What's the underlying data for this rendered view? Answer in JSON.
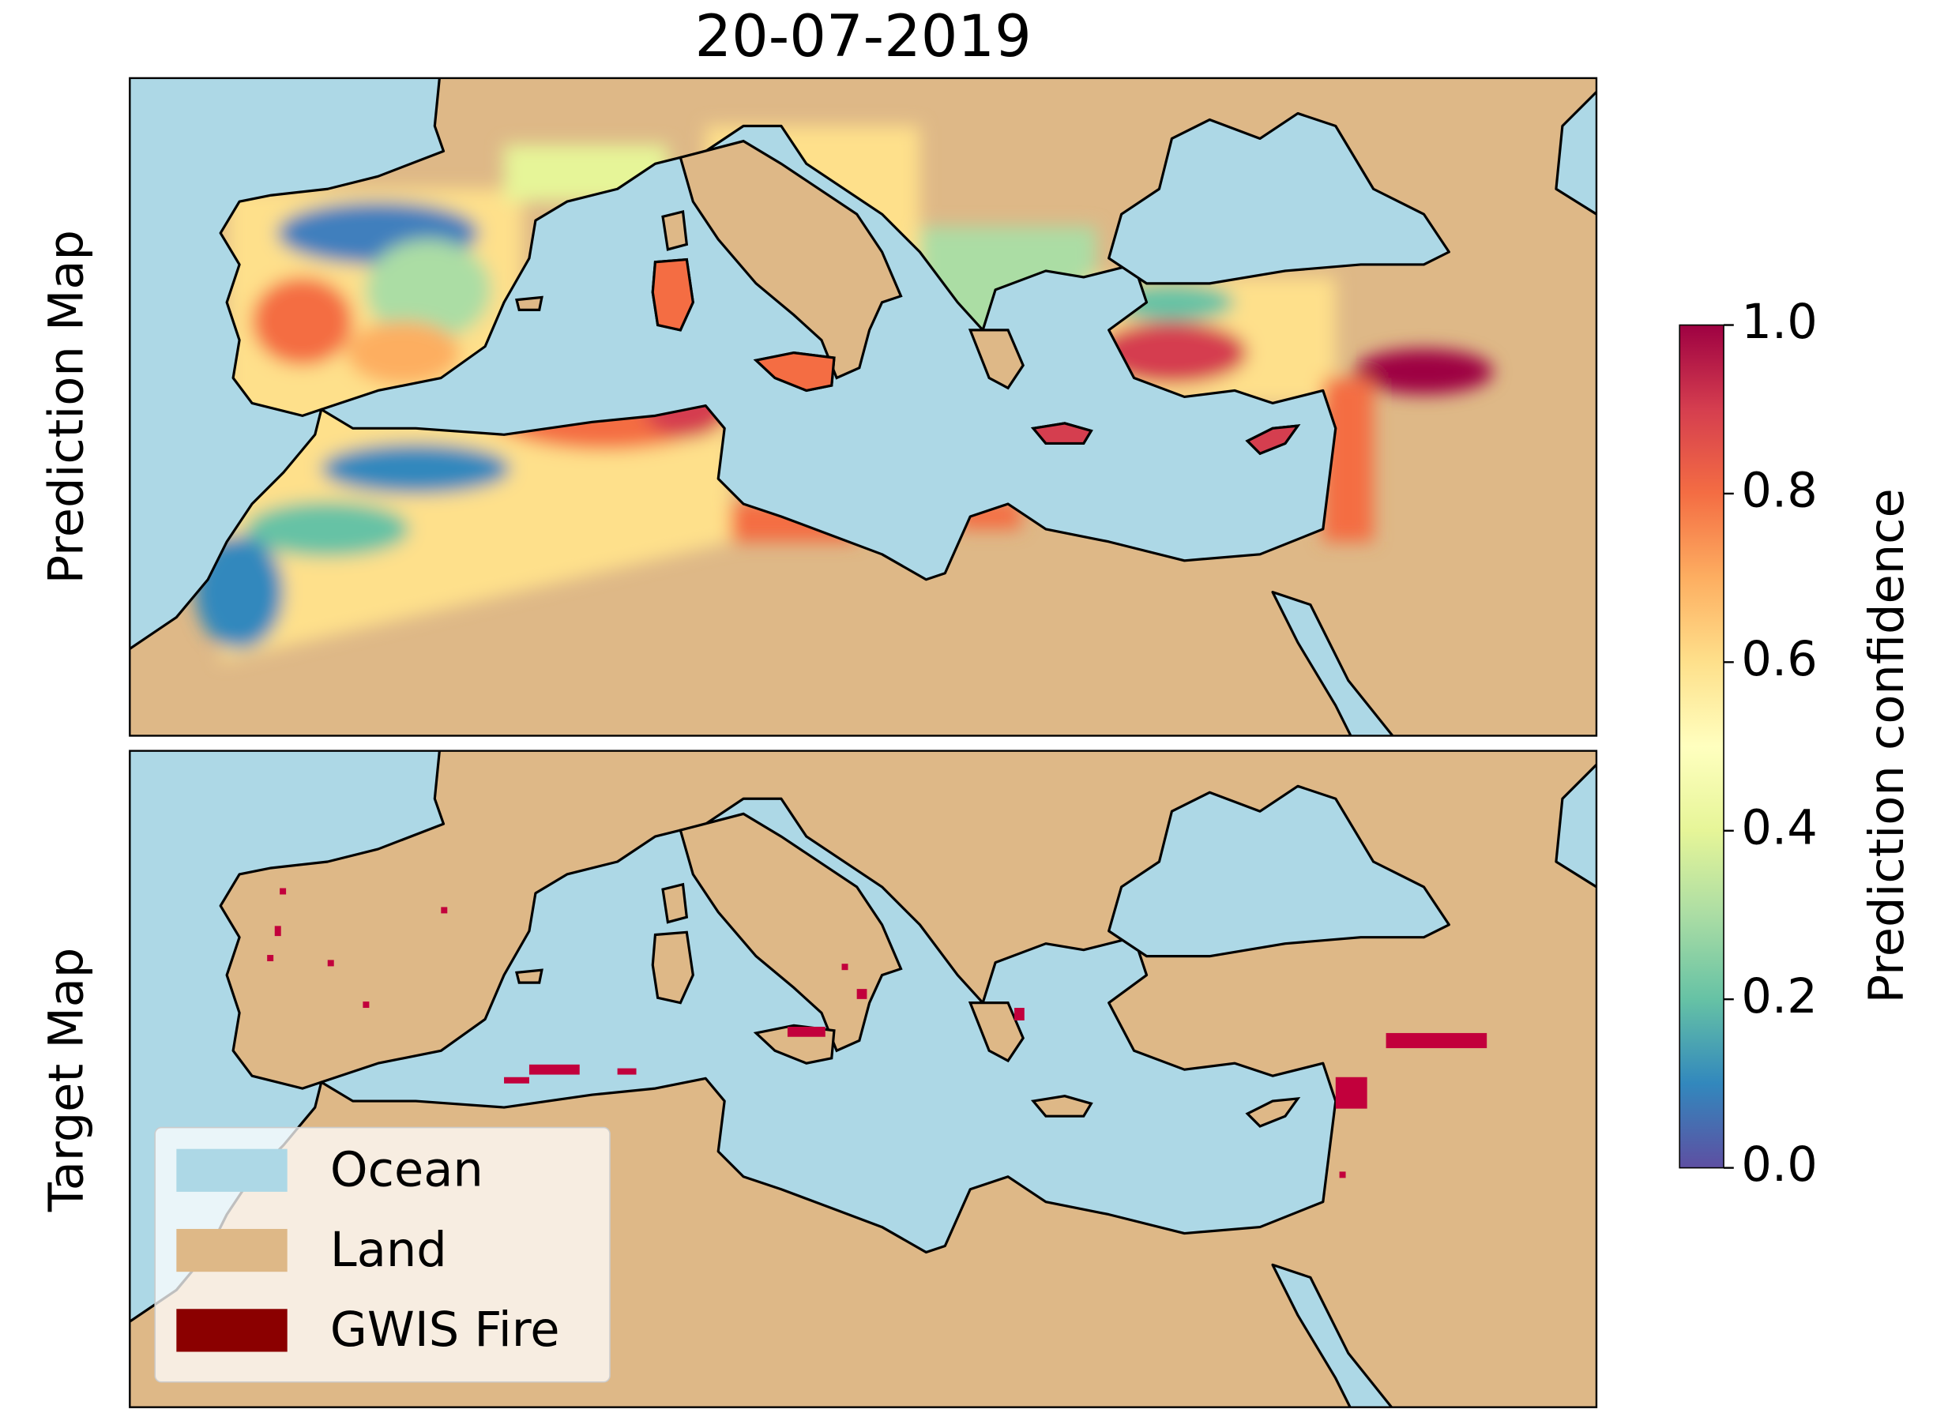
{
  "title": "20-07-2019",
  "panels": [
    {
      "label": "Prediction Map"
    },
    {
      "label": "Target Map"
    }
  ],
  "colorbar": {
    "label": "Prediction confidence",
    "ylim": [
      0,
      1
    ],
    "ticks": [
      {
        "value": 0,
        "label": "0.0"
      },
      0.2,
      0.4,
      0.6,
      0.8,
      {
        "value": 1,
        "label": "1.0"
      }
    ]
  },
  "legend": {
    "entries": [
      {
        "label": "Ocean",
        "color": "#add8e6"
      },
      {
        "label": "Land",
        "color": "#deb887"
      },
      {
        "label": "GWIS Fire",
        "color": "#8b0000"
      }
    ]
  }
}
